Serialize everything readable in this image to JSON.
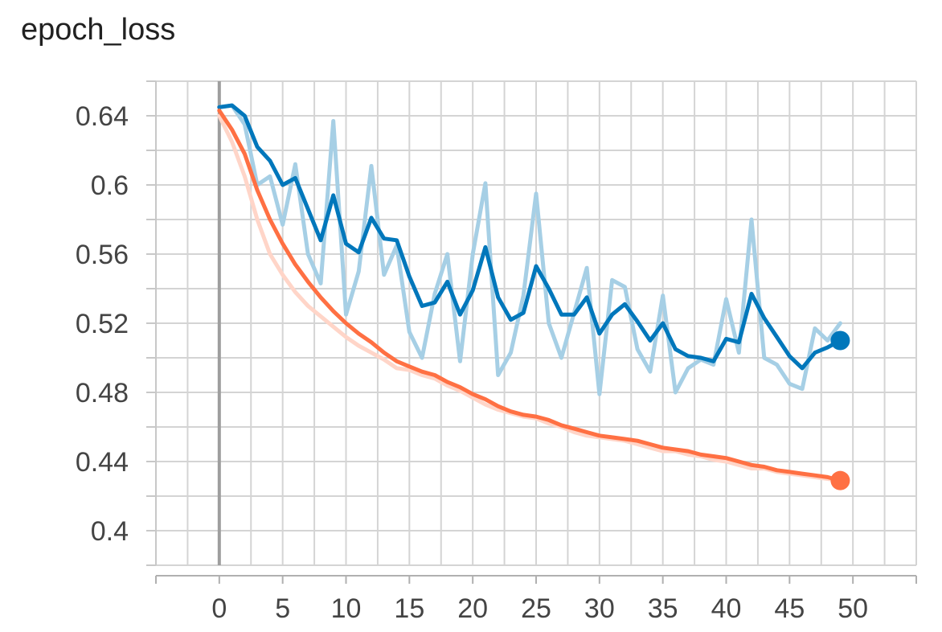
{
  "chart_data": {
    "type": "line",
    "title": "epoch_loss",
    "xlabel": "",
    "ylabel": "",
    "xlim": [
      -5,
      55
    ],
    "ylim": [
      0.38,
      0.66
    ],
    "x_ticks": [
      0,
      5,
      10,
      15,
      20,
      25,
      30,
      35,
      40,
      45,
      50
    ],
    "y_ticks": [
      0.4,
      0.44,
      0.48,
      0.52,
      0.56,
      0.6,
      0.64
    ],
    "y_tick_labels": [
      "0.4",
      "0.44",
      "0.48",
      "0.52",
      "0.56",
      "0.6",
      "0.64"
    ],
    "grid": true,
    "legend": "none",
    "series": [
      {
        "color": "#0077bb",
        "raw_color": "#a6cfe5",
        "x": [
          0,
          1,
          2,
          3,
          4,
          5,
          6,
          7,
          8,
          9,
          10,
          11,
          12,
          13,
          14,
          15,
          16,
          17,
          18,
          19,
          20,
          21,
          22,
          23,
          24,
          25,
          26,
          27,
          28,
          29,
          30,
          31,
          32,
          33,
          34,
          35,
          36,
          37,
          38,
          39,
          40,
          41,
          42,
          43,
          44,
          45,
          46,
          47,
          48,
          49
        ],
        "smoothed": [
          0.645,
          0.646,
          0.64,
          0.622,
          0.614,
          0.6,
          0.604,
          0.586,
          0.568,
          0.594,
          0.566,
          0.561,
          0.581,
          0.569,
          0.568,
          0.547,
          0.53,
          0.532,
          0.544,
          0.525,
          0.539,
          0.564,
          0.535,
          0.522,
          0.526,
          0.553,
          0.54,
          0.525,
          0.525,
          0.535,
          0.514,
          0.525,
          0.531,
          0.521,
          0.51,
          0.52,
          0.505,
          0.501,
          0.5,
          0.498,
          0.511,
          0.509,
          0.537,
          0.523,
          0.512,
          0.501,
          0.494,
          0.503,
          0.506,
          0.51
        ],
        "raw": [
          0.645,
          0.646,
          0.635,
          0.6,
          0.605,
          0.577,
          0.612,
          0.56,
          0.543,
          0.637,
          0.525,
          0.55,
          0.611,
          0.548,
          0.565,
          0.515,
          0.5,
          0.537,
          0.56,
          0.498,
          0.56,
          0.601,
          0.49,
          0.503,
          0.536,
          0.595,
          0.52,
          0.5,
          0.526,
          0.552,
          0.479,
          0.545,
          0.541,
          0.505,
          0.492,
          0.536,
          0.48,
          0.494,
          0.499,
          0.496,
          0.534,
          0.503,
          0.58,
          0.5,
          0.496,
          0.485,
          0.482,
          0.517,
          0.51,
          0.52
        ]
      },
      {
        "color": "#ff7043",
        "raw_color": "#ffd5c8",
        "x": [
          0,
          1,
          2,
          3,
          4,
          5,
          6,
          7,
          8,
          9,
          10,
          11,
          12,
          13,
          14,
          15,
          16,
          17,
          18,
          19,
          20,
          21,
          22,
          23,
          24,
          25,
          26,
          27,
          28,
          29,
          30,
          31,
          32,
          33,
          34,
          35,
          36,
          37,
          38,
          39,
          40,
          41,
          42,
          43,
          44,
          45,
          46,
          47,
          48,
          49
        ],
        "smoothed": [
          0.643,
          0.632,
          0.618,
          0.597,
          0.58,
          0.566,
          0.554,
          0.544,
          0.535,
          0.527,
          0.52,
          0.514,
          0.509,
          0.503,
          0.498,
          0.495,
          0.492,
          0.49,
          0.486,
          0.483,
          0.479,
          0.476,
          0.472,
          0.469,
          0.467,
          0.466,
          0.464,
          0.461,
          0.459,
          0.457,
          0.455,
          0.454,
          0.453,
          0.452,
          0.45,
          0.448,
          0.447,
          0.446,
          0.444,
          0.443,
          0.442,
          0.44,
          0.438,
          0.437,
          0.435,
          0.434,
          0.433,
          0.432,
          0.431,
          0.429
        ],
        "raw": [
          0.64,
          0.625,
          0.605,
          0.58,
          0.56,
          0.548,
          0.538,
          0.53,
          0.524,
          0.518,
          0.512,
          0.507,
          0.503,
          0.499,
          0.494,
          0.493,
          0.49,
          0.488,
          0.484,
          0.481,
          0.477,
          0.473,
          0.47,
          0.468,
          0.466,
          0.465,
          0.462,
          0.46,
          0.457,
          0.455,
          0.454,
          0.453,
          0.452,
          0.45,
          0.448,
          0.446,
          0.446,
          0.444,
          0.443,
          0.441,
          0.44,
          0.438,
          0.436,
          0.436,
          0.434,
          0.433,
          0.432,
          0.431,
          0.43,
          0.429
        ]
      }
    ]
  }
}
